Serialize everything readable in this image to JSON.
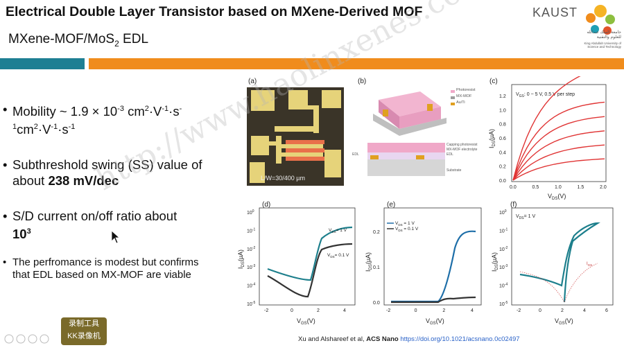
{
  "header": {
    "title": "Electrical Double Layer Transistor based on MXene-Derived MOF",
    "subtitle_main": "MXene-MOF/MoS",
    "subtitle_sub": "2",
    "subtitle_tail": " EDL",
    "logo_text": "KAUST",
    "logo_arabic": "جامعة الملك عبدالله للعلوم والتقنية",
    "logo_english": "King Abdullah University of Science and Technology",
    "colors": {
      "teal": "#1e7f93",
      "orange": "#f08c1c"
    }
  },
  "bullets": [
    {
      "text_a": "Mobility ~ 1.9 × 10",
      "sup_a": "-3",
      "text_b": " cm",
      "sup_b": "2",
      "text_c": "·V",
      "sup_c": "-1",
      "text_d": "·s",
      "sup_d": "-1",
      "text_e": "cm",
      "sup_e": "2",
      "text_f": "·V",
      "sup_f": "-1",
      "text_g": "·s",
      "sup_g": "-1"
    },
    {
      "text": "Subthreshold swing (SS) value of about ",
      "bold": "238 mV/dec"
    },
    {
      "text": "S/D current on/off ratio about ",
      "bold": "10",
      "bold_sup": "3"
    },
    {
      "text": "The perfromance is modest but confirms that EDL based on MX-MOF are viable"
    }
  ],
  "figure": {
    "panel_a": {
      "label": "(a)",
      "scale_text": "L/W=30/400 µm"
    },
    "panel_b": {
      "label": "(b)",
      "legend": [
        "Photoresist",
        "MX-MOF",
        "Au/Ti"
      ],
      "layers": [
        "Capping photoresist",
        "MX-MOF electrolyte",
        "EDL",
        "Substrate"
      ],
      "side_label": "EDL"
    },
    "panel_c": {
      "label": "(c)",
      "annotation": "V",
      "annotation_sub": "GS",
      "annotation_tail": ": 0 ~ 5 V, 0.5 V per step",
      "xlabel": "V",
      "xlabel_sub": "DS",
      "xlabel_tail": "(V)",
      "ylabel": "I",
      "ylabel_sub": "DS",
      "ylabel_tail": "(µA)",
      "xticks": [
        "0.0",
        "0.5",
        "1.0",
        "1.5",
        "2.0"
      ],
      "yticks": [
        "0.0",
        "0.2",
        "0.4",
        "0.6",
        "0.8",
        "1.0",
        "1.2"
      ]
    },
    "panel_d": {
      "label": "(d)",
      "legend_hi": "V",
      "legend_hi_sub": "DS",
      "legend_hi_tail": "= 1 V",
      "legend_lo": "V",
      "legend_lo_sub": "DS",
      "legend_lo_tail": "= 0.1 V",
      "xlabel": "V",
      "xlabel_sub": "GS",
      "xlabel_tail": "(V)",
      "ylabel": "I",
      "ylabel_sub": "DS",
      "ylabel_tail": "(µA)",
      "xticks": [
        "-2",
        "0",
        "2",
        "4"
      ],
      "yticks": [
        "10",
        "10",
        "10",
        "10",
        "10",
        "10"
      ],
      "ysup": [
        "0",
        "-1",
        "-2",
        "-3",
        "-4",
        "-5"
      ]
    },
    "panel_e": {
      "label": "(e)",
      "legend_hi": "V",
      "legend_hi_sub": "DS",
      "legend_hi_tail": " = 1 V",
      "legend_lo": "V",
      "legend_lo_sub": "DS",
      "legend_lo_tail": " = 0.1 V",
      "xlabel": "V",
      "xlabel_sub": "GS",
      "xlabel_tail": "(V)",
      "ylabel": "I",
      "ylabel_sub": "DS",
      "ylabel_tail": "(µA)",
      "xticks": [
        "-2",
        "0",
        "2",
        "4"
      ],
      "yticks": [
        "0.0",
        "0.1",
        "0.2"
      ]
    },
    "panel_f": {
      "label": "(f)",
      "annotation": "V",
      "annotation_sub": "DS",
      "annotation_tail": "= 1 V",
      "gate_label": "I",
      "gate_sub": "GS",
      "xlabel": "V",
      "xlabel_sub": "GS",
      "xlabel_tail": "(V)",
      "ylabel": "I",
      "ylabel_sub": "DS",
      "ylabel_tail": "(µA)",
      "xticks": [
        "-2",
        "0",
        "2",
        "4",
        "6"
      ],
      "yticks": [
        "10",
        "10",
        "10",
        "10",
        "10",
        "10"
      ],
      "ysup": [
        "0",
        "-1",
        "-2",
        "-3",
        "-4",
        "-5"
      ]
    }
  },
  "citation": {
    "text": "Xu and Alshareef et al, ",
    "journal": "ACS Nano",
    "doi": " https://doi.org/10.1021/acsnano.0c02497"
  },
  "overlay": {
    "badge_line1": "录制工具",
    "badge_line2": "KK录像机",
    "watermark": "http://www.haolinxenes.com"
  }
}
